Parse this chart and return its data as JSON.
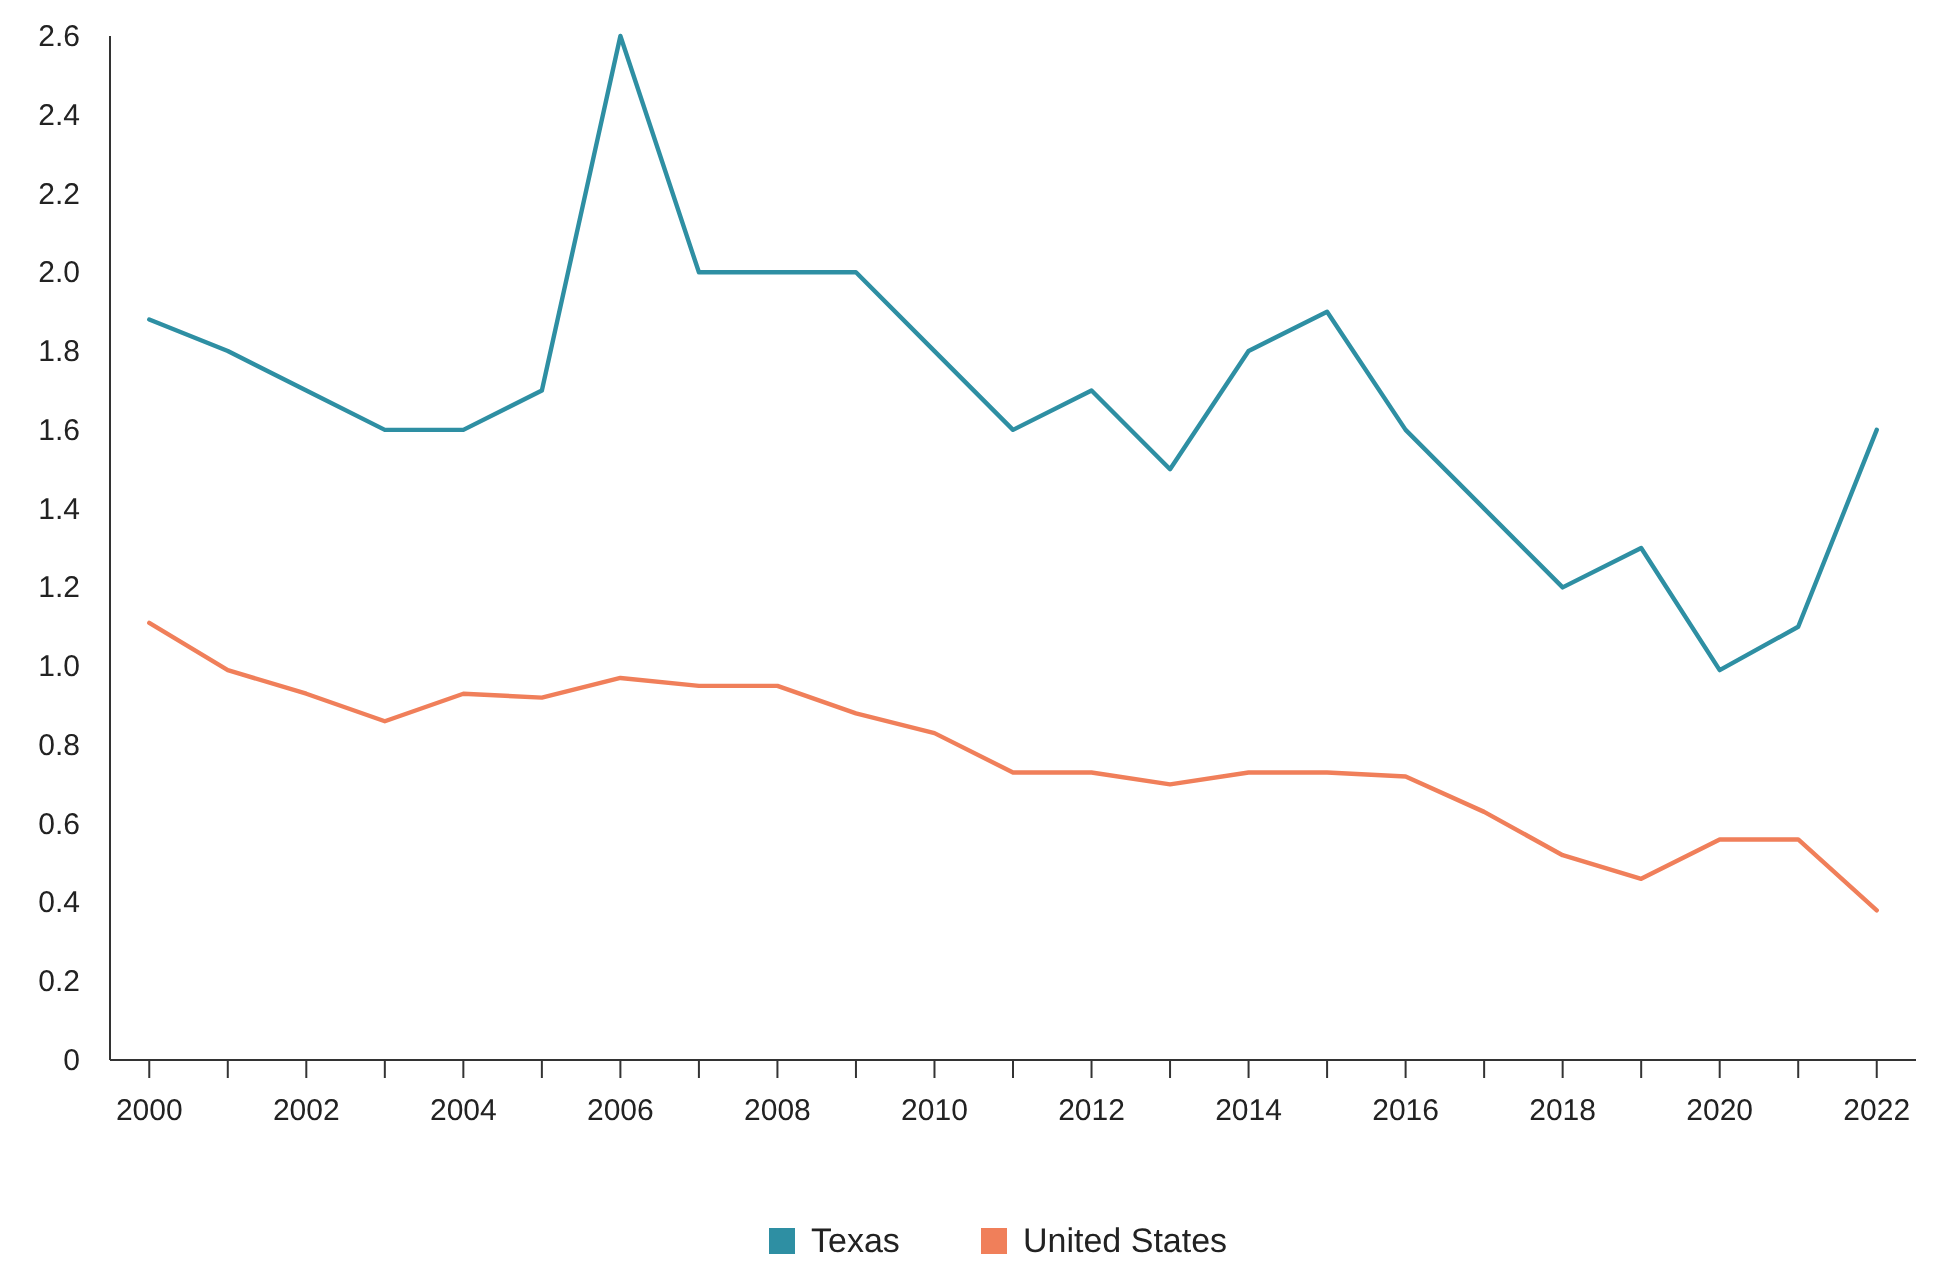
{
  "chart_data": {
    "type": "line",
    "x": [
      2000,
      2001,
      2002,
      2003,
      2004,
      2005,
      2006,
      2007,
      2008,
      2009,
      2010,
      2011,
      2012,
      2013,
      2014,
      2015,
      2016,
      2017,
      2018,
      2019,
      2020,
      2021,
      2022
    ],
    "series": [
      {
        "name": "Texas",
        "color": "#2e8fa3",
        "values": [
          1.88,
          1.8,
          1.7,
          1.6,
          1.6,
          1.7,
          2.6,
          2.0,
          2.0,
          2.0,
          1.8,
          1.6,
          1.7,
          1.5,
          1.8,
          1.9,
          1.6,
          1.4,
          1.2,
          1.3,
          0.99,
          1.1,
          1.6
        ]
      },
      {
        "name": "United States",
        "color": "#f07f5a",
        "values": [
          1.11,
          0.99,
          0.93,
          0.86,
          0.93,
          0.92,
          0.97,
          0.95,
          0.95,
          0.88,
          0.83,
          0.73,
          0.73,
          0.7,
          0.73,
          0.73,
          0.72,
          0.63,
          0.52,
          0.46,
          0.56,
          0.56,
          0.38
        ]
      }
    ],
    "xlim": [
      1999.5,
      2022.5
    ],
    "xticks": [
      2000,
      {
        "value": 2001,
        "label": null
      },
      2002,
      {
        "value": 2003,
        "label": null
      },
      2004,
      {
        "value": 2005,
        "label": null
      },
      2006,
      {
        "value": 2007,
        "label": null
      },
      2008,
      {
        "value": 2009,
        "label": null
      },
      2010,
      {
        "value": 2011,
        "label": null
      },
      2012,
      {
        "value": 2013,
        "label": null
      },
      2014,
      {
        "value": 2015,
        "label": null
      },
      2016,
      {
        "value": 2017,
        "label": null
      },
      2018,
      {
        "value": 2019,
        "label": null
      },
      2020,
      {
        "value": 2021,
        "label": null
      },
      2022
    ],
    "ylim": [
      0,
      2.6
    ],
    "yticks": [
      0,
      0.2,
      0.4,
      0.6,
      0.8,
      {
        "value": 1,
        "label": "1.0"
      },
      1.2,
      1.4,
      1.6,
      1.8,
      {
        "value": 2,
        "label": "2.0"
      },
      2.2,
      2.4,
      2.6
    ],
    "grid": false,
    "legend": "bottom",
    "marker": "none",
    "line_style": "solid"
  }
}
